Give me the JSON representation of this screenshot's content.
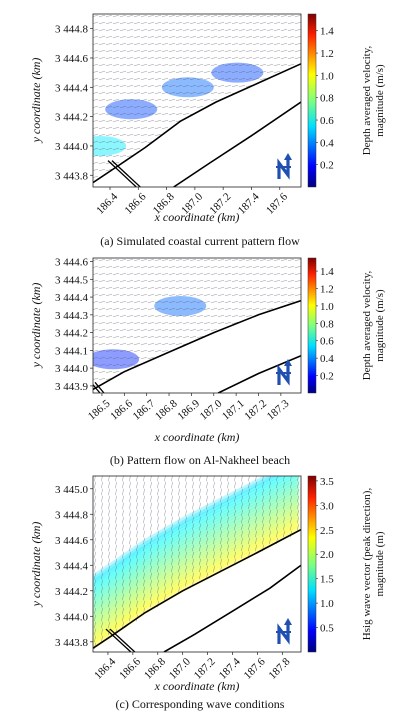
{
  "chart_data": [
    {
      "type": "vector_field",
      "caption": "(a) Simulated coastal current pattern flow",
      "xlabel": "x coordinate (km)",
      "ylabel": "y coordinate (km)",
      "xlim": [
        186.28,
        187.75
      ],
      "ylim": [
        3443.72,
        3444.9
      ],
      "xticks": [
        186.4,
        186.6,
        186.8,
        187.0,
        187.2,
        187.4,
        187.6
      ],
      "xtick_labels": [
        "186.4",
        "186.6",
        "186.8",
        "187.0",
        "187.2",
        "187.4",
        "187.6"
      ],
      "yticks": [
        3443.8,
        3444.0,
        3444.2,
        3444.4,
        3444.6,
        3444.8
      ],
      "ytick_labels": [
        "3 443.8",
        "3 444.0",
        "3 444.2",
        "3 444.4",
        "3 444.6",
        "3 444.8"
      ],
      "colorbar": {
        "label": "Depth averaged velocity, magnitude (m/s)",
        "range": [
          0,
          1.55
        ],
        "ticks": [
          0.2,
          0.4,
          0.6,
          0.8,
          1.0,
          1.2,
          1.4
        ],
        "tick_labels": [
          "0.2",
          "0.4",
          "0.6",
          "0.8",
          "1.0",
          "1.2",
          "1.4"
        ],
        "colormap": "jet"
      },
      "shorelines": [
        [
          [
            186.28,
            3443.75
          ],
          [
            186.45,
            3443.86
          ],
          [
            186.65,
            3443.99
          ],
          [
            186.9,
            3444.17
          ],
          [
            187.15,
            3444.3
          ],
          [
            187.45,
            3444.43
          ],
          [
            187.75,
            3444.56
          ]
        ],
        [
          [
            186.85,
            3443.72
          ],
          [
            187.1,
            3443.88
          ],
          [
            187.4,
            3444.07
          ],
          [
            187.75,
            3444.3
          ]
        ]
      ],
      "jetty": [
        [
          186.4,
          3443.9
        ],
        [
          186.6,
          3443.72
        ]
      ],
      "flow_direction_deg": 15,
      "highlight_zones": [
        {
          "x": 186.33,
          "y": 3444.0,
          "magnitude": 0.55
        },
        {
          "x": 186.55,
          "y": 3444.25,
          "magnitude": 0.3
        },
        {
          "x": 186.95,
          "y": 3444.4,
          "magnitude": 0.35
        },
        {
          "x": 187.3,
          "y": 3444.5,
          "magnitude": 0.3
        }
      ],
      "north_icon": "north-arrow-icon"
    },
    {
      "type": "vector_field",
      "caption": "(b) Pattern flow on Al-Nakheel beach",
      "xlabel": "x coordinate (km)",
      "ylabel": "y coordinate (km)",
      "xlim": [
        186.46,
        187.39
      ],
      "ylim": [
        3443.86,
        3444.62
      ],
      "xticks": [
        186.5,
        186.6,
        186.7,
        186.8,
        186.9,
        187.0,
        187.1,
        187.2,
        187.3
      ],
      "xtick_labels": [
        "186.5",
        "186.6",
        "186.7",
        "186.8",
        "186.9",
        "187.0",
        "187.1",
        "187.2",
        "187.3"
      ],
      "yticks": [
        3443.9,
        3444.0,
        3444.1,
        3444.2,
        3444.3,
        3444.4,
        3444.5,
        3444.6
      ],
      "ytick_labels": [
        "3 443.9",
        "3 444.0",
        "3 444.1",
        "3 444.2",
        "3 444.3",
        "3 444.4",
        "3 444.5",
        "3 444.6"
      ],
      "colorbar": {
        "label": "Depth averaged velocity, magnitude (m/s)",
        "range": [
          0,
          1.55
        ],
        "ticks": [
          0.2,
          0.4,
          0.6,
          0.8,
          1.0,
          1.2,
          1.4
        ],
        "tick_labels": [
          "0.2",
          "0.4",
          "0.6",
          "0.8",
          "1.0",
          "1.2",
          "1.4"
        ],
        "colormap": "jet"
      },
      "shorelines": [
        [
          [
            186.46,
            3443.88
          ],
          [
            186.6,
            3443.98
          ],
          [
            186.8,
            3444.09
          ],
          [
            187.0,
            3444.2
          ],
          [
            187.2,
            3444.3
          ],
          [
            187.39,
            3444.38
          ]
        ],
        [
          [
            187.02,
            3443.86
          ],
          [
            187.2,
            3443.97
          ],
          [
            187.39,
            3444.07
          ]
        ]
      ],
      "jetty": [
        [
          186.46,
          3443.92
        ],
        [
          186.5,
          3443.86
        ]
      ],
      "flow_direction_deg": 15,
      "highlight_zones": [
        {
          "x": 186.85,
          "y": 3444.35,
          "magnitude": 0.35
        },
        {
          "x": 186.55,
          "y": 3444.05,
          "magnitude": 0.25
        }
      ],
      "north_icon": "north-arrow-icon"
    },
    {
      "type": "vector_field",
      "caption": "(c) Corresponding wave conditions",
      "xlabel": "x coordinate (km)",
      "ylabel": "y coordinate (km)",
      "xlim": [
        186.28,
        187.95
      ],
      "ylim": [
        3443.72,
        3445.1
      ],
      "xticks": [
        186.4,
        186.6,
        186.8,
        187.0,
        187.2,
        187.4,
        187.6,
        187.8
      ],
      "xtick_labels": [
        "186.4",
        "186.6",
        "186.8",
        "187.0",
        "187.2",
        "187.4",
        "187.6",
        "187.8"
      ],
      "yticks": [
        3443.8,
        3444.0,
        3444.2,
        3444.4,
        3444.6,
        3444.8,
        3445.0
      ],
      "ytick_labels": [
        "3 443.8",
        "3 444.0",
        "3 444.2",
        "3 444.4",
        "3 444.6",
        "3 444.8",
        "3 445.0"
      ],
      "colorbar": {
        "label": "Hsig wave vector (peak direction), magnitude (m)",
        "range": [
          0,
          3.6
        ],
        "ticks": [
          0.5,
          1.0,
          1.5,
          2.0,
          2.5,
          3.0,
          3.5
        ],
        "tick_labels": [
          "0.5",
          "1.0",
          "1.5",
          "2.0",
          "2.5",
          "3.0",
          "3.5"
        ],
        "colormap": "jet"
      },
      "shorelines": [
        [
          [
            186.28,
            3443.75
          ],
          [
            186.45,
            3443.86
          ],
          [
            186.7,
            3444.03
          ],
          [
            187.0,
            3444.2
          ],
          [
            187.3,
            3444.35
          ],
          [
            187.6,
            3444.5
          ],
          [
            187.95,
            3444.68
          ]
        ],
        [
          [
            186.85,
            3443.72
          ],
          [
            187.1,
            3443.86
          ],
          [
            187.4,
            3444.04
          ],
          [
            187.7,
            3444.22
          ],
          [
            187.95,
            3444.4
          ]
        ]
      ],
      "jetty": [
        [
          186.4,
          3443.9
        ],
        [
          186.6,
          3443.72
        ]
      ],
      "flow_direction_deg": -100,
      "wave_band": {
        "near_shore": 2.3,
        "offshore": 1.2
      },
      "north_icon": "north-arrow-icon"
    }
  ],
  "colors": {
    "shoreline": "#000000",
    "arrow": "#555566",
    "north_icon": "#1f4fb0"
  }
}
